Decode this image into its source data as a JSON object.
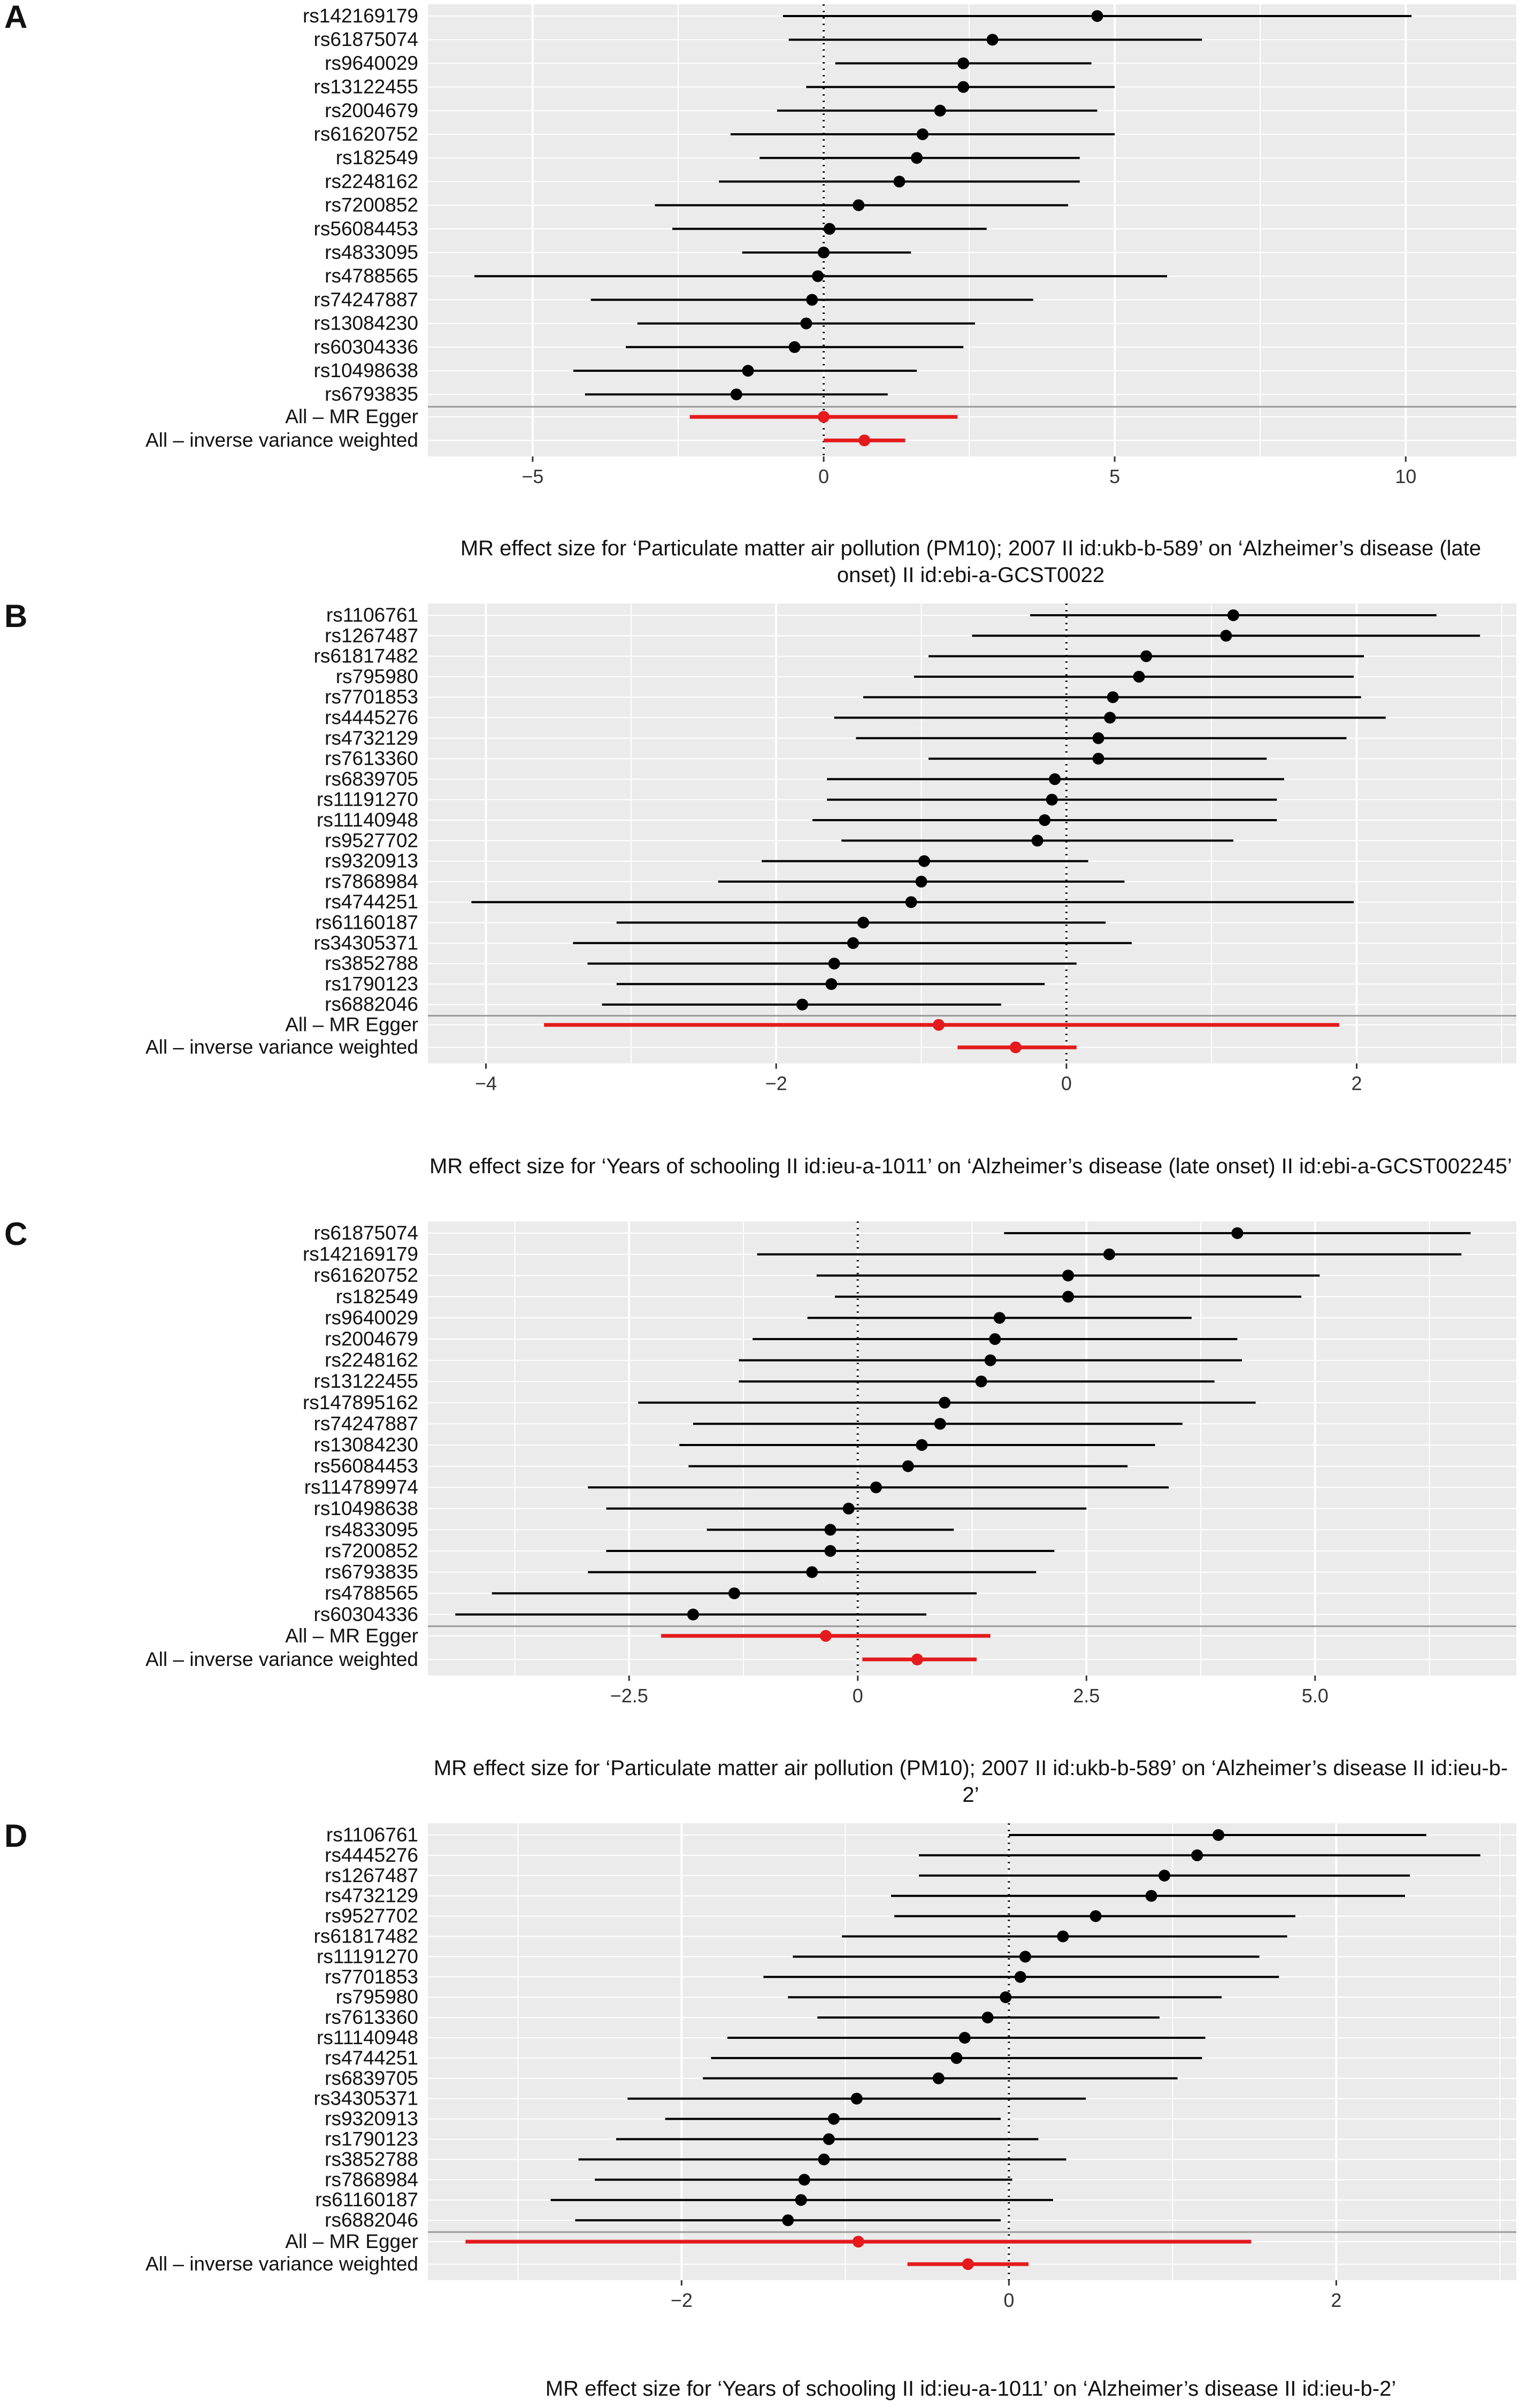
{
  "colors": {
    "panel_background": "#ebebeb",
    "gridline": "#ffffff",
    "snp_marker": "#000000",
    "mr_summary": "#e41a1c",
    "separator": "#999999",
    "zero_line": "#222222"
  },
  "chart_data": [
    {
      "type": "forest",
      "panel": "A",
      "xlabel": "MR effect size for ‘Particulate matter air pollution (PM10); 2007 II id:ukb-b-589’ on ‘Alzheimer’s disease (late onset) II id:ebi-a-GCST0022",
      "xlim": [
        -6.8,
        11.9
      ],
      "xticks": [
        -5,
        0,
        5,
        10
      ],
      "xtick_labels": [
        "−5",
        "0",
        "5",
        "10"
      ],
      "reference_line": 0,
      "snps": [
        {
          "label": "rs142169179",
          "estimate": 4.7,
          "lower": -0.7,
          "upper": 10.1
        },
        {
          "label": "rs61875074",
          "estimate": 2.9,
          "lower": -0.6,
          "upper": 6.5
        },
        {
          "label": "rs9640029",
          "estimate": 2.4,
          "lower": 0.2,
          "upper": 4.6
        },
        {
          "label": "rs13122455",
          "estimate": 2.4,
          "lower": -0.3,
          "upper": 5.0
        },
        {
          "label": "rs2004679",
          "estimate": 2.0,
          "lower": -0.8,
          "upper": 4.7
        },
        {
          "label": "rs61620752",
          "estimate": 1.7,
          "lower": -1.6,
          "upper": 5.0
        },
        {
          "label": "rs182549",
          "estimate": 1.6,
          "lower": -1.1,
          "upper": 4.4
        },
        {
          "label": "rs2248162",
          "estimate": 1.3,
          "lower": -1.8,
          "upper": 4.4
        },
        {
          "label": "rs7200852",
          "estimate": 0.6,
          "lower": -2.9,
          "upper": 4.2
        },
        {
          "label": "rs56084453",
          "estimate": 0.1,
          "lower": -2.6,
          "upper": 2.8
        },
        {
          "label": "rs4833095",
          "estimate": 0.0,
          "lower": -1.4,
          "upper": 1.5
        },
        {
          "label": "rs4788565",
          "estimate": -0.1,
          "lower": -6.0,
          "upper": 5.9
        },
        {
          "label": "rs74247887",
          "estimate": -0.2,
          "lower": -4.0,
          "upper": 3.6
        },
        {
          "label": "rs13084230",
          "estimate": -0.3,
          "lower": -3.2,
          "upper": 2.6
        },
        {
          "label": "rs60304336",
          "estimate": -0.5,
          "lower": -3.4,
          "upper": 2.4
        },
        {
          "label": "rs10498638",
          "estimate": -1.3,
          "lower": -4.3,
          "upper": 1.6
        },
        {
          "label": "rs6793835",
          "estimate": -1.5,
          "lower": -4.1,
          "upper": 1.1
        }
      ],
      "summaries": [
        {
          "label": "All – MR Egger",
          "estimate": 0.0,
          "lower": -2.3,
          "upper": 2.3
        },
        {
          "label": "All – inverse variance weighted",
          "estimate": 0.7,
          "lower": 0.0,
          "upper": 1.4
        }
      ]
    },
    {
      "type": "forest",
      "panel": "B",
      "xlabel": "MR effect size for ‘Years of schooling II id:ieu-a-1011’ on ‘Alzheimer’s disease (late onset) II id:ebi-a-GCST002245’",
      "xlim": [
        -4.4,
        3.1
      ],
      "xticks": [
        -4,
        -2,
        0,
        2
      ],
      "xtick_labels": [
        "−4",
        "−2",
        "0",
        "2"
      ],
      "reference_line": 0,
      "snps": [
        {
          "label": "rs1106761",
          "estimate": 1.15,
          "lower": -0.25,
          "upper": 2.55
        },
        {
          "label": "rs1267487",
          "estimate": 1.1,
          "lower": -0.65,
          "upper": 2.85
        },
        {
          "label": "rs61817482",
          "estimate": 0.55,
          "lower": -0.95,
          "upper": 2.05
        },
        {
          "label": "rs795980",
          "estimate": 0.5,
          "lower": -1.05,
          "upper": 1.98
        },
        {
          "label": "rs7701853",
          "estimate": 0.32,
          "lower": -1.4,
          "upper": 2.03
        },
        {
          "label": "rs4445276",
          "estimate": 0.3,
          "lower": -1.6,
          "upper": 2.2
        },
        {
          "label": "rs4732129",
          "estimate": 0.22,
          "lower": -1.45,
          "upper": 1.93
        },
        {
          "label": "rs7613360",
          "estimate": 0.22,
          "lower": -0.95,
          "upper": 1.38
        },
        {
          "label": "rs6839705",
          "estimate": -0.08,
          "lower": -1.65,
          "upper": 1.5
        },
        {
          "label": "rs11191270",
          "estimate": -0.1,
          "lower": -1.65,
          "upper": 1.45
        },
        {
          "label": "rs11140948",
          "estimate": -0.15,
          "lower": -1.75,
          "upper": 1.45
        },
        {
          "label": "rs9527702",
          "estimate": -0.2,
          "lower": -1.55,
          "upper": 1.15
        },
        {
          "label": "rs9320913",
          "estimate": -0.98,
          "lower": -2.1,
          "upper": 0.15
        },
        {
          "label": "rs7868984",
          "estimate": -1.0,
          "lower": -2.4,
          "upper": 0.4
        },
        {
          "label": "rs4744251",
          "estimate": -1.07,
          "lower": -4.1,
          "upper": 1.98
        },
        {
          "label": "rs61160187",
          "estimate": -1.4,
          "lower": -3.1,
          "upper": 0.27
        },
        {
          "label": "rs34305371",
          "estimate": -1.47,
          "lower": -3.4,
          "upper": 0.45
        },
        {
          "label": "rs3852788",
          "estimate": -1.6,
          "lower": -3.3,
          "upper": 0.07
        },
        {
          "label": "rs1790123",
          "estimate": -1.62,
          "lower": -3.1,
          "upper": -0.15
        },
        {
          "label": "rs6882046",
          "estimate": -1.82,
          "lower": -3.2,
          "upper": -0.45
        }
      ],
      "summaries": [
        {
          "label": "All – MR Egger",
          "estimate": -0.88,
          "lower": -3.6,
          "upper": 1.88
        },
        {
          "label": "All – inverse variance weighted",
          "estimate": -0.35,
          "lower": -0.75,
          "upper": 0.07
        }
      ]
    },
    {
      "type": "forest",
      "panel": "C",
      "xlabel": "MR effect size for ‘Particulate matter air pollution (PM10); 2007 II id:ukb-b-589’ on ‘Alzheimer’s disease II id:ieu-b-2’",
      "xlim": [
        -4.7,
        7.2
      ],
      "xticks": [
        -2.5,
        0,
        2.5,
        5
      ],
      "xtick_labels": [
        "−2.5",
        "0",
        "2.5",
        "5.0"
      ],
      "reference_line": 0,
      "snps": [
        {
          "label": "rs61875074",
          "estimate": 4.15,
          "lower": 1.6,
          "upper": 6.7
        },
        {
          "label": "rs142169179",
          "estimate": 2.75,
          "lower": -1.1,
          "upper": 6.6
        },
        {
          "label": "rs61620752",
          "estimate": 2.3,
          "lower": -0.45,
          "upper": 5.05
        },
        {
          "label": "rs182549",
          "estimate": 2.3,
          "lower": -0.25,
          "upper": 4.85
        },
        {
          "label": "rs9640029",
          "estimate": 1.55,
          "lower": -0.55,
          "upper": 3.65
        },
        {
          "label": "rs2004679",
          "estimate": 1.5,
          "lower": -1.15,
          "upper": 4.15
        },
        {
          "label": "rs2248162",
          "estimate": 1.45,
          "lower": -1.3,
          "upper": 4.2
        },
        {
          "label": "rs13122455",
          "estimate": 1.35,
          "lower": -1.3,
          "upper": 3.9
        },
        {
          "label": "rs147895162",
          "estimate": 0.95,
          "lower": -2.4,
          "upper": 4.35
        },
        {
          "label": "rs74247887",
          "estimate": 0.9,
          "lower": -1.8,
          "upper": 3.55
        },
        {
          "label": "rs13084230",
          "estimate": 0.7,
          "lower": -1.95,
          "upper": 3.25
        },
        {
          "label": "rs56084453",
          "estimate": 0.55,
          "lower": -1.85,
          "upper": 2.95
        },
        {
          "label": "rs114789974",
          "estimate": 0.2,
          "lower": -2.95,
          "upper": 3.4
        },
        {
          "label": "rs10498638",
          "estimate": -0.1,
          "lower": -2.75,
          "upper": 2.5
        },
        {
          "label": "rs4833095",
          "estimate": -0.3,
          "lower": -1.65,
          "upper": 1.05
        },
        {
          "label": "rs7200852",
          "estimate": -0.3,
          "lower": -2.75,
          "upper": 2.15
        },
        {
          "label": "rs6793835",
          "estimate": -0.5,
          "lower": -2.95,
          "upper": 1.95
        },
        {
          "label": "rs4788565",
          "estimate": -1.35,
          "lower": -4.0,
          "upper": 1.3
        },
        {
          "label": "rs60304336",
          "estimate": -1.8,
          "lower": -4.4,
          "upper": 0.75
        }
      ],
      "summaries": [
        {
          "label": "All – MR Egger",
          "estimate": -0.35,
          "lower": -2.15,
          "upper": 1.45
        },
        {
          "label": "All – inverse variance weighted",
          "estimate": 0.65,
          "lower": 0.05,
          "upper": 1.3
        }
      ]
    },
    {
      "type": "forest",
      "panel": "D",
      "xlabel": "MR effect size for ‘Years of schooling II id:ieu-a-1011’ on ‘Alzheimer’s disease II id:ieu-b-2’",
      "xlim": [
        -3.55,
        3.1
      ],
      "xticks": [
        -2,
        0,
        2
      ],
      "xtick_labels": [
        "−2",
        "0",
        "2"
      ],
      "reference_line": 0,
      "snps": [
        {
          "label": "rs1106761",
          "estimate": 1.28,
          "lower": 0.0,
          "upper": 2.55
        },
        {
          "label": "rs4445276",
          "estimate": 1.15,
          "lower": -0.55,
          "upper": 2.88
        },
        {
          "label": "rs1267487",
          "estimate": 0.95,
          "lower": -0.55,
          "upper": 2.45
        },
        {
          "label": "rs4732129",
          "estimate": 0.87,
          "lower": -0.72,
          "upper": 2.42
        },
        {
          "label": "rs9527702",
          "estimate": 0.53,
          "lower": -0.7,
          "upper": 1.75
        },
        {
          "label": "rs61817482",
          "estimate": 0.33,
          "lower": -1.02,
          "upper": 1.7
        },
        {
          "label": "rs11191270",
          "estimate": 0.1,
          "lower": -1.32,
          "upper": 1.53
        },
        {
          "label": "rs7701853",
          "estimate": 0.07,
          "lower": -1.5,
          "upper": 1.65
        },
        {
          "label": "rs795980",
          "estimate": -0.02,
          "lower": -1.35,
          "upper": 1.3
        },
        {
          "label": "rs7613360",
          "estimate": -0.13,
          "lower": -1.17,
          "upper": 0.92
        },
        {
          "label": "rs11140948",
          "estimate": -0.27,
          "lower": -1.72,
          "upper": 1.2
        },
        {
          "label": "rs4744251",
          "estimate": -0.32,
          "lower": -1.82,
          "upper": 1.18
        },
        {
          "label": "rs6839705",
          "estimate": -0.43,
          "lower": -1.87,
          "upper": 1.03
        },
        {
          "label": "rs34305371",
          "estimate": -0.93,
          "lower": -2.33,
          "upper": 0.47
        },
        {
          "label": "rs9320913",
          "estimate": -1.07,
          "lower": -2.1,
          "upper": -0.05
        },
        {
          "label": "rs1790123",
          "estimate": -1.1,
          "lower": -2.4,
          "upper": 0.18
        },
        {
          "label": "rs3852788",
          "estimate": -1.13,
          "lower": -2.63,
          "upper": 0.35
        },
        {
          "label": "rs7868984",
          "estimate": -1.25,
          "lower": -2.53,
          "upper": 0.02
        },
        {
          "label": "rs61160187",
          "estimate": -1.27,
          "lower": -2.8,
          "upper": 0.27
        },
        {
          "label": "rs6882046",
          "estimate": -1.35,
          "lower": -2.65,
          "upper": -0.05
        }
      ],
      "summaries": [
        {
          "label": "All – MR Egger",
          "estimate": -0.92,
          "lower": -3.32,
          "upper": 1.48
        },
        {
          "label": "All – inverse variance weighted",
          "estimate": -0.25,
          "lower": -0.62,
          "upper": 0.12
        }
      ]
    }
  ]
}
